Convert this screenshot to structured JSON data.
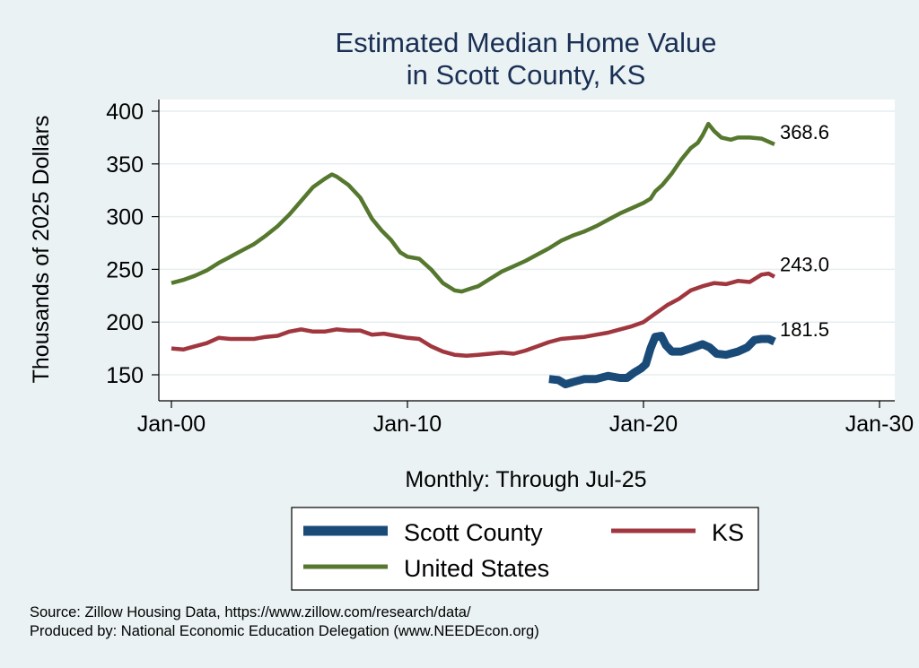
{
  "chart_data": {
    "type": "line",
    "title_lines": [
      "Estimated Median Home Value",
      "in Scott County, KS"
    ],
    "xlabel": "Monthly: Through Jul-25",
    "ylabel": "Thousands of 2025 Dollars",
    "x_ticks": [
      2000,
      2010,
      2020,
      2030
    ],
    "x_tick_labels": [
      "Jan-00",
      "Jan-10",
      "Jan-20",
      "Jan-30"
    ],
    "xlim": [
      2000,
      2030
    ],
    "y_ticks": [
      150,
      200,
      250,
      300,
      350,
      400
    ],
    "y_tick_labels": [
      "150",
      "200",
      "250",
      "300",
      "350",
      "400"
    ],
    "ylim": [
      140,
      405
    ],
    "grid": "horizontal",
    "legend_position": "bottom",
    "series": [
      {
        "name": "Scott County",
        "color": "#1a4b78",
        "end_label": "181.5",
        "points": [
          [
            2016.0,
            146
          ],
          [
            2016.4,
            145
          ],
          [
            2016.7,
            141
          ],
          [
            2017.0,
            143
          ],
          [
            2017.5,
            146
          ],
          [
            2018.0,
            146
          ],
          [
            2018.5,
            149
          ],
          [
            2019.0,
            147
          ],
          [
            2019.3,
            147
          ],
          [
            2019.6,
            152
          ],
          [
            2019.9,
            156
          ],
          [
            2020.1,
            160
          ],
          [
            2020.3,
            175
          ],
          [
            2020.5,
            186
          ],
          [
            2020.75,
            187
          ],
          [
            2020.95,
            178
          ],
          [
            2021.2,
            172
          ],
          [
            2021.6,
            172
          ],
          [
            2022.0,
            175
          ],
          [
            2022.5,
            179
          ],
          [
            2022.8,
            176
          ],
          [
            2023.1,
            170
          ],
          [
            2023.5,
            169
          ],
          [
            2024.0,
            172
          ],
          [
            2024.4,
            176
          ],
          [
            2024.7,
            183
          ],
          [
            2025.0,
            184
          ],
          [
            2025.3,
            184
          ],
          [
            2025.55,
            181.5
          ]
        ]
      },
      {
        "name": "KS",
        "color": "#a0373f",
        "end_label": "243.0",
        "points": [
          [
            2000.0,
            175
          ],
          [
            2000.5,
            174
          ],
          [
            2001.0,
            177
          ],
          [
            2001.5,
            180
          ],
          [
            2002.0,
            185
          ],
          [
            2002.5,
            184
          ],
          [
            2003.0,
            184
          ],
          [
            2003.5,
            184
          ],
          [
            2004.0,
            186
          ],
          [
            2004.5,
            187
          ],
          [
            2005.0,
            191
          ],
          [
            2005.5,
            193
          ],
          [
            2006.0,
            191
          ],
          [
            2006.5,
            191
          ],
          [
            2007.0,
            193
          ],
          [
            2007.5,
            192
          ],
          [
            2008.0,
            192
          ],
          [
            2008.5,
            188
          ],
          [
            2009.0,
            189
          ],
          [
            2009.5,
            187
          ],
          [
            2010.0,
            185
          ],
          [
            2010.5,
            184
          ],
          [
            2011.0,
            177
          ],
          [
            2011.5,
            172
          ],
          [
            2012.0,
            169
          ],
          [
            2012.5,
            168
          ],
          [
            2013.0,
            169
          ],
          [
            2013.5,
            170
          ],
          [
            2014.0,
            171
          ],
          [
            2014.5,
            170
          ],
          [
            2015.0,
            173
          ],
          [
            2015.5,
            177
          ],
          [
            2016.0,
            181
          ],
          [
            2016.5,
            184
          ],
          [
            2017.0,
            185
          ],
          [
            2017.5,
            186
          ],
          [
            2018.0,
            188
          ],
          [
            2018.5,
            190
          ],
          [
            2019.0,
            193
          ],
          [
            2019.5,
            196
          ],
          [
            2020.0,
            200
          ],
          [
            2020.5,
            208
          ],
          [
            2021.0,
            216
          ],
          [
            2021.5,
            222
          ],
          [
            2022.0,
            230
          ],
          [
            2022.5,
            234
          ],
          [
            2023.0,
            237
          ],
          [
            2023.5,
            236
          ],
          [
            2024.0,
            239
          ],
          [
            2024.5,
            238
          ],
          [
            2025.0,
            245
          ],
          [
            2025.3,
            246
          ],
          [
            2025.55,
            243
          ]
        ]
      },
      {
        "name": "United States",
        "color": "#55782e",
        "end_label": "368.6",
        "points": [
          [
            2000.0,
            237
          ],
          [
            2000.5,
            240
          ],
          [
            2001.0,
            244
          ],
          [
            2001.5,
            249
          ],
          [
            2002.0,
            256
          ],
          [
            2002.5,
            262
          ],
          [
            2003.0,
            268
          ],
          [
            2003.5,
            274
          ],
          [
            2004.0,
            282
          ],
          [
            2004.5,
            291
          ],
          [
            2005.0,
            302
          ],
          [
            2005.5,
            315
          ],
          [
            2006.0,
            328
          ],
          [
            2006.5,
            336
          ],
          [
            2006.8,
            340
          ],
          [
            2007.0,
            338
          ],
          [
            2007.5,
            330
          ],
          [
            2008.0,
            318
          ],
          [
            2008.5,
            298
          ],
          [
            2008.9,
            287
          ],
          [
            2009.3,
            278
          ],
          [
            2009.7,
            266
          ],
          [
            2010.0,
            262
          ],
          [
            2010.5,
            260
          ],
          [
            2011.0,
            250
          ],
          [
            2011.5,
            237
          ],
          [
            2012.0,
            230
          ],
          [
            2012.3,
            229
          ],
          [
            2012.7,
            232
          ],
          [
            2013.0,
            234
          ],
          [
            2013.5,
            241
          ],
          [
            2014.0,
            248
          ],
          [
            2014.5,
            253
          ],
          [
            2015.0,
            258
          ],
          [
            2015.5,
            264
          ],
          [
            2016.0,
            270
          ],
          [
            2016.5,
            277
          ],
          [
            2017.0,
            282
          ],
          [
            2017.5,
            286
          ],
          [
            2018.0,
            291
          ],
          [
            2018.5,
            297
          ],
          [
            2019.0,
            303
          ],
          [
            2019.5,
            308
          ],
          [
            2020.0,
            313
          ],
          [
            2020.3,
            317
          ],
          [
            2020.5,
            324
          ],
          [
            2020.8,
            330
          ],
          [
            2021.2,
            341
          ],
          [
            2021.6,
            354
          ],
          [
            2022.0,
            365
          ],
          [
            2022.3,
            370
          ],
          [
            2022.5,
            377
          ],
          [
            2022.75,
            388
          ],
          [
            2023.0,
            381
          ],
          [
            2023.3,
            375
          ],
          [
            2023.7,
            373
          ],
          [
            2024.0,
            375
          ],
          [
            2024.5,
            375
          ],
          [
            2025.0,
            374
          ],
          [
            2025.55,
            368.6
          ]
        ]
      }
    ]
  },
  "source_lines": [
    "Source: Zillow Housing Data, https://www.zillow.com/research/data/",
    "Produced by: National Economic Education Delegation (www.NEEDEcon.org)"
  ]
}
